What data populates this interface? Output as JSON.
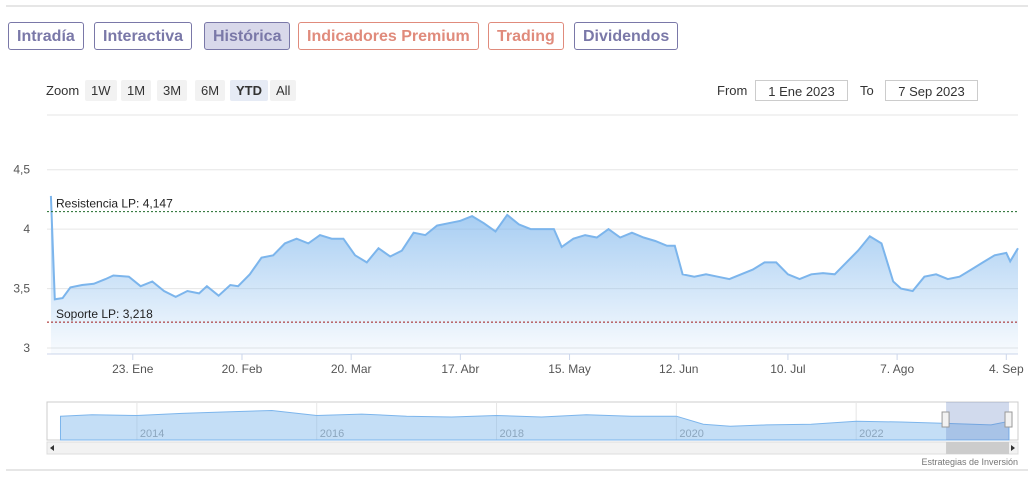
{
  "tabs": [
    "Intradía",
    "Interactiva",
    "Histórica",
    "Indicadores Premium",
    "Trading",
    "Dividendos"
  ],
  "zoom": {
    "label": "Zoom",
    "buttons": [
      "1W",
      "1M",
      "3M",
      "6M",
      "YTD",
      "All"
    ],
    "selected": "YTD"
  },
  "range": {
    "from_label": "From",
    "from": "1 Ene 2023",
    "to_label": "To",
    "to": "7 Sep 2023"
  },
  "credit": "Estrategias de Inversión",
  "chart_data": {
    "type": "area",
    "color": "#7cb5ec",
    "xlim": [
      "2023-01-01",
      "2023-09-07"
    ],
    "xticks": [
      {
        "value": "2023-01-23",
        "label": "23. Ene"
      },
      {
        "value": "2023-02-20",
        "label": "20. Feb"
      },
      {
        "value": "2023-03-20",
        "label": "20. Mar"
      },
      {
        "value": "2023-04-17",
        "label": "17. Abr"
      },
      {
        "value": "2023-05-15",
        "label": "15. May"
      },
      {
        "value": "2023-06-12",
        "label": "12. Jun"
      },
      {
        "value": "2023-07-10",
        "label": "10. Jul"
      },
      {
        "value": "2023-08-07",
        "label": "7. Ago"
      },
      {
        "value": "2023-09-04",
        "label": "4. Sep"
      }
    ],
    "ylim": [
      2.95,
      4.96
    ],
    "yticks": [
      {
        "value": 3,
        "label": "3"
      },
      {
        "value": 3.5,
        "label": "3,5"
      },
      {
        "value": 4,
        "label": "4"
      },
      {
        "value": 4.5,
        "label": "4,5"
      }
    ],
    "grid": true,
    "plot_lines": [
      {
        "label": "Resistencia LP: 4,147",
        "value": 4.147,
        "color": "#1f6b2a"
      },
      {
        "label": "Soporte LP: 3,218",
        "value": 3.218,
        "color": "#a01818"
      }
    ],
    "x": [
      "2023-01-02",
      "2023-01-03",
      "2023-01-05",
      "2023-01-07",
      "2023-01-10",
      "2023-01-13",
      "2023-01-16",
      "2023-01-18",
      "2023-01-22",
      "2023-01-25",
      "2023-01-28",
      "2023-01-31",
      "2023-02-03",
      "2023-02-06",
      "2023-02-09",
      "2023-02-11",
      "2023-02-14",
      "2023-02-17",
      "2023-02-19",
      "2023-02-22",
      "2023-02-25",
      "2023-02-28",
      "2023-03-03",
      "2023-03-06",
      "2023-03-09",
      "2023-03-12",
      "2023-03-15",
      "2023-03-18",
      "2023-03-21",
      "2023-03-24",
      "2023-03-27",
      "2023-03-30",
      "2023-04-02",
      "2023-04-05",
      "2023-04-08",
      "2023-04-11",
      "2023-04-14",
      "2023-04-17",
      "2023-04-20",
      "2023-04-23",
      "2023-04-26",
      "2023-04-29",
      "2023-05-02",
      "2023-05-05",
      "2023-05-08",
      "2023-05-11",
      "2023-05-13",
      "2023-05-16",
      "2023-05-19",
      "2023-05-22",
      "2023-05-25",
      "2023-05-28",
      "2023-05-31",
      "2023-06-03",
      "2023-06-06",
      "2023-06-09",
      "2023-06-11",
      "2023-06-13",
      "2023-06-16",
      "2023-06-19",
      "2023-06-22",
      "2023-06-25",
      "2023-06-28",
      "2023-07-01",
      "2023-07-04",
      "2023-07-07",
      "2023-07-10",
      "2023-07-13",
      "2023-07-16",
      "2023-07-19",
      "2023-07-22",
      "2023-07-25",
      "2023-07-28",
      "2023-07-31",
      "2023-08-03",
      "2023-08-06",
      "2023-08-08",
      "2023-08-11",
      "2023-08-14",
      "2023-08-17",
      "2023-08-20",
      "2023-08-23",
      "2023-08-26",
      "2023-08-29",
      "2023-09-01",
      "2023-09-04",
      "2023-09-05",
      "2023-09-07"
    ],
    "values": [
      4.28,
      3.41,
      3.42,
      3.51,
      3.53,
      3.54,
      3.58,
      3.61,
      3.6,
      3.52,
      3.56,
      3.48,
      3.43,
      3.48,
      3.46,
      3.52,
      3.44,
      3.53,
      3.52,
      3.62,
      3.76,
      3.78,
      3.88,
      3.92,
      3.88,
      3.95,
      3.92,
      3.92,
      3.78,
      3.72,
      3.84,
      3.77,
      3.82,
      3.97,
      3.95,
      4.03,
      4.05,
      4.07,
      4.11,
      4.05,
      3.98,
      4.12,
      4.04,
      4.0,
      4.0,
      4.0,
      3.85,
      3.92,
      3.95,
      3.93,
      4.0,
      3.93,
      3.97,
      3.93,
      3.9,
      3.86,
      3.86,
      3.62,
      3.6,
      3.62,
      3.6,
      3.58,
      3.62,
      3.66,
      3.72,
      3.72,
      3.62,
      3.58,
      3.62,
      3.63,
      3.62,
      3.72,
      3.82,
      3.94,
      3.88,
      3.56,
      3.5,
      3.48,
      3.6,
      3.62,
      3.58,
      3.6,
      3.66,
      3.72,
      3.78,
      3.8,
      3.73,
      3.84
    ],
    "navigator": {
      "xlim": [
        2013.0,
        2023.8
      ],
      "ylim": [
        2,
        7
      ],
      "xticks": [
        2014,
        2016,
        2018,
        2020,
        2022
      ],
      "selection": [
        2023.0,
        2023.7
      ],
      "x": [
        2013.15,
        2013.5,
        2014.0,
        2014.5,
        2015.0,
        2015.5,
        2016.0,
        2016.5,
        2017.0,
        2017.5,
        2018.0,
        2018.5,
        2019.0,
        2019.5,
        2020.0,
        2020.3,
        2020.6,
        2021.0,
        2021.5,
        2022.0,
        2022.5,
        2023.0,
        2023.5,
        2023.7
      ],
      "values": [
        5.3,
        5.5,
        5.4,
        5.7,
        5.9,
        6.1,
        5.4,
        5.6,
        5.3,
        5.2,
        5.4,
        5.2,
        5.5,
        5.3,
        5.3,
        4.2,
        3.9,
        4.1,
        4.2,
        4.6,
        4.5,
        4.3,
        4.1,
        4.6
      ]
    }
  }
}
